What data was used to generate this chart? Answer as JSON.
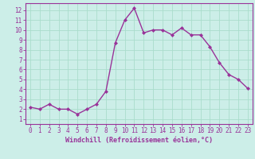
{
  "x": [
    0,
    1,
    2,
    3,
    4,
    5,
    6,
    7,
    8,
    9,
    10,
    11,
    12,
    13,
    14,
    15,
    16,
    17,
    18,
    19,
    20,
    21,
    22,
    23
  ],
  "y": [
    2.2,
    2.0,
    2.5,
    2.0,
    2.0,
    1.5,
    2.0,
    2.5,
    3.8,
    8.7,
    11.0,
    12.2,
    9.7,
    10.0,
    10.0,
    9.5,
    10.2,
    9.5,
    9.5,
    8.3,
    6.7,
    5.5,
    5.0,
    4.1
  ],
  "line_color": "#993399",
  "marker": "D",
  "marker_size": 2.0,
  "linewidth": 1.0,
  "xlabel": "Windchill (Refroidissement éolien,°C)",
  "xlabel_fontsize": 6.0,
  "ylabel_ticks": [
    1,
    2,
    3,
    4,
    5,
    6,
    7,
    8,
    9,
    10,
    11,
    12
  ],
  "xtick_labels": [
    "0",
    "1",
    "2",
    "3",
    "4",
    "5",
    "6",
    "7",
    "8",
    "9",
    "10",
    "11",
    "12",
    "13",
    "14",
    "15",
    "16",
    "17",
    "18",
    "19",
    "20",
    "21",
    "22",
    "23"
  ],
  "ylim": [
    0.5,
    12.7
  ],
  "xlim": [
    -0.5,
    23.5
  ],
  "bg_color": "#cceee8",
  "grid_color": "#aaddcc",
  "tick_fontsize": 5.5,
  "spine_color": "#993399"
}
